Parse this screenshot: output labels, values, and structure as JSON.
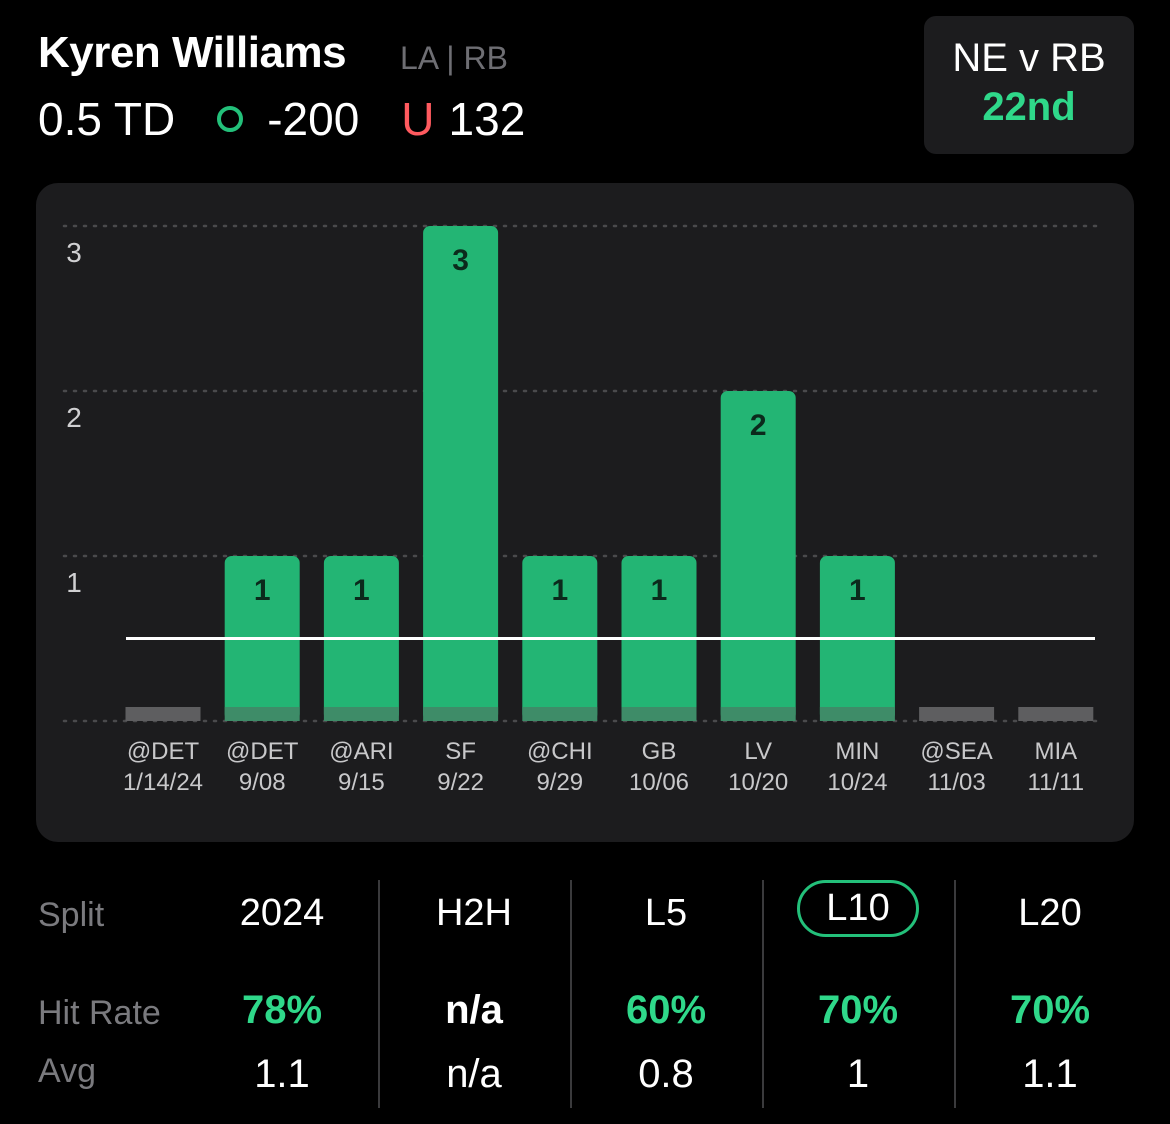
{
  "header": {
    "player_name": "Kyren Williams",
    "team_pos": "LA | RB",
    "line_value": "0.5 TD",
    "over_odds": "-200",
    "under_symbol": "U",
    "under_odds": "132"
  },
  "matchup": {
    "title": "NE v RB",
    "rank": "22nd"
  },
  "chart_data": {
    "type": "bar",
    "categories": [
      "@DET",
      "@DET",
      "@ARI",
      "SF",
      "@CHI",
      "GB",
      "LV",
      "MIN",
      "@SEA",
      "MIA"
    ],
    "dates": [
      "1/14/24",
      "9/08",
      "9/15",
      "9/22",
      "9/29",
      "10/06",
      "10/20",
      "10/24",
      "11/03",
      "11/11"
    ],
    "values": [
      0,
      1,
      1,
      3,
      1,
      1,
      2,
      1,
      0,
      0
    ],
    "line": 0.5,
    "ylim": [
      0,
      3
    ],
    "yticks": [
      1,
      2,
      3
    ],
    "hit_color": "#23b574",
    "miss_color": "#5e5e60"
  },
  "splits": {
    "label_split": "Split",
    "label_hit": "Hit Rate",
    "label_avg": "Avg",
    "columns": [
      {
        "header": "2024",
        "hit": "78%",
        "avg": "1.1",
        "active": false
      },
      {
        "header": "H2H",
        "hit": "n/a",
        "avg": "n/a",
        "active": false
      },
      {
        "header": "L5",
        "hit": "60%",
        "avg": "0.8",
        "active": false
      },
      {
        "header": "L10",
        "hit": "70%",
        "avg": "1",
        "active": true
      },
      {
        "header": "L20",
        "hit": "70%",
        "avg": "1.1",
        "active": false
      }
    ]
  }
}
